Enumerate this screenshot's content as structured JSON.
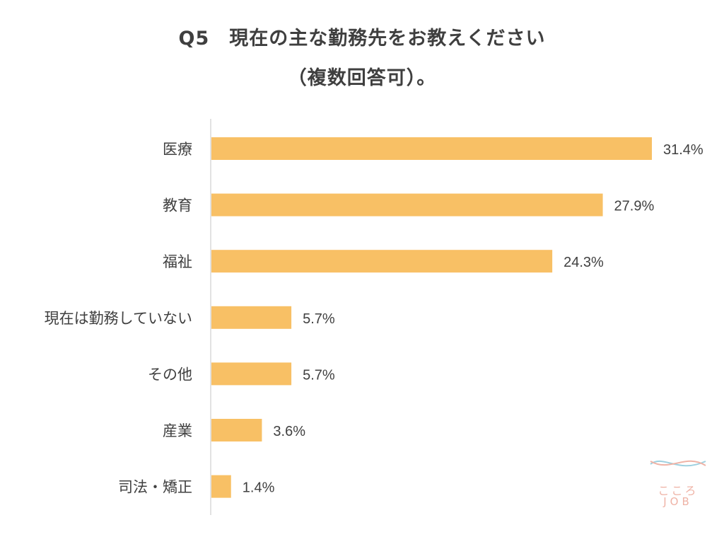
{
  "title": {
    "line1": "Q5　現在の主な勤務先をお教えください",
    "line2": "（複数回答可）。"
  },
  "chart_data": {
    "type": "bar",
    "orientation": "horizontal",
    "categories": [
      "医療",
      "教育",
      "福祉",
      "現在は勤務していない",
      "その他",
      "産業",
      "司法・矯正"
    ],
    "values": [
      31.4,
      27.9,
      24.3,
      5.7,
      5.7,
      3.6,
      1.4
    ],
    "labels": [
      "31.4%",
      "27.9%",
      "24.3%",
      "5.7%",
      "5.7%",
      "3.6%",
      "1.4%"
    ],
    "unit": "%",
    "xlim": [
      0,
      31.4
    ],
    "bar_color": "#f8c065",
    "grid": false,
    "legend": "none"
  },
  "logo": {
    "kana": "こころ",
    "text": "JOB"
  },
  "colors": {
    "logo_blue": "#9fd1e0",
    "logo_pink": "#efb3a6"
  }
}
